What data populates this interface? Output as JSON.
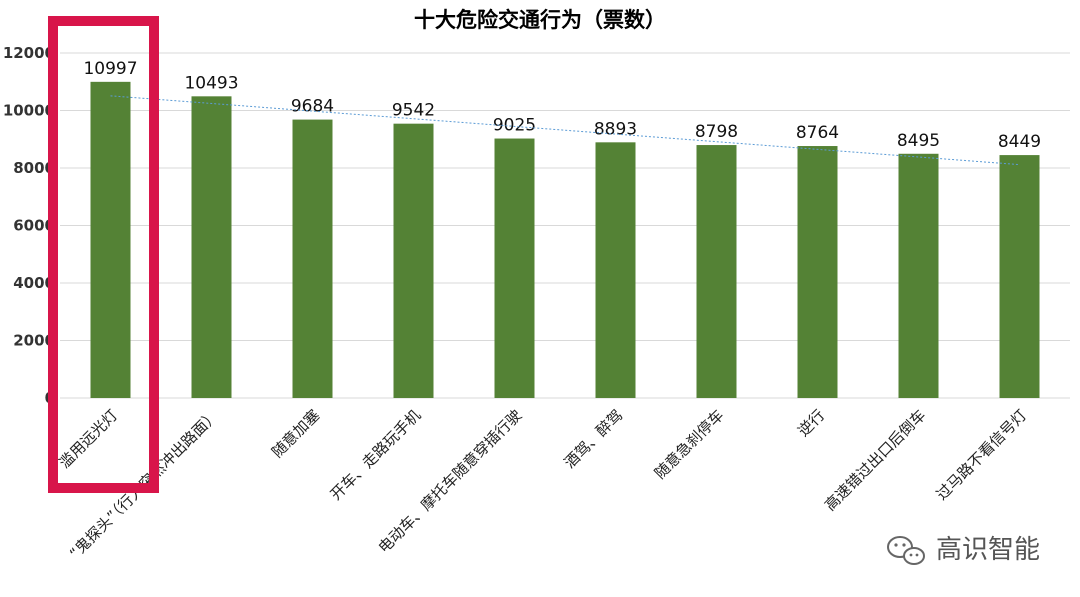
{
  "chart_data": {
    "type": "bar",
    "title": "十大危险交通行为（票数）",
    "categories": [
      "滥用远光灯",
      "“鬼探头”（行人突然冲出路面）",
      "随意加塞",
      "开车、走路玩手机",
      "电动车、摩托车随意穿插行驶",
      "酒驾、醉驾",
      "随意急刹停车",
      "逆行",
      "高速错过出口后倒车",
      "过马路不看信号灯"
    ],
    "values": [
      10997,
      10493,
      9684,
      9542,
      9025,
      8893,
      8798,
      8764,
      8495,
      8449
    ],
    "ylim": [
      0,
      12000
    ],
    "yticks": [
      "0",
      "2000",
      "4000",
      "6000",
      "8000",
      "10000",
      "12000"
    ],
    "grid": true,
    "trendline": "linear",
    "highlighted_category": "滥用远光灯",
    "colors": {
      "bar": "#548235",
      "trend": "#5b9bd5",
      "highlight": "#d8154a"
    }
  },
  "watermark": {
    "text": "高识智能",
    "icon": "wechat-icon"
  }
}
